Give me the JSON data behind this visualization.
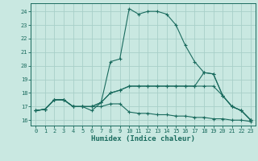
{
  "xlabel": "Humidex (Indice chaleur)",
  "ylabel": "",
  "bg_color": "#c9e8e1",
  "grid_color": "#a8cfc8",
  "line_color": "#1a6b5e",
  "xlim": [
    -0.5,
    23.5
  ],
  "ylim": [
    15.6,
    24.6
  ],
  "yticks": [
    16,
    17,
    18,
    19,
    20,
    21,
    22,
    23,
    24
  ],
  "xticks": [
    0,
    1,
    2,
    3,
    4,
    5,
    6,
    7,
    8,
    9,
    10,
    11,
    12,
    13,
    14,
    15,
    16,
    17,
    18,
    19,
    20,
    21,
    22,
    23
  ],
  "series": [
    [
      16.7,
      16.8,
      17.5,
      17.5,
      17.0,
      17.0,
      16.7,
      17.3,
      20.3,
      20.5,
      24.2,
      23.8,
      24.0,
      24.0,
      23.8,
      23.0,
      21.5,
      20.3,
      19.5,
      19.4,
      17.8,
      17.0,
      16.7,
      16.0
    ],
    [
      16.7,
      16.8,
      17.5,
      17.5,
      17.0,
      17.0,
      17.0,
      17.3,
      18.0,
      18.2,
      18.5,
      18.5,
      18.5,
      18.5,
      18.5,
      18.5,
      18.5,
      18.5,
      19.5,
      19.4,
      17.8,
      17.0,
      16.7,
      16.0
    ],
    [
      16.7,
      16.8,
      17.5,
      17.5,
      17.0,
      17.0,
      17.0,
      17.3,
      18.0,
      18.2,
      18.5,
      18.5,
      18.5,
      18.5,
      18.5,
      18.5,
      18.5,
      18.5,
      18.5,
      18.5,
      17.8,
      17.0,
      16.7,
      16.0
    ],
    [
      16.7,
      16.8,
      17.5,
      17.5,
      17.0,
      17.0,
      17.0,
      17.0,
      17.2,
      17.2,
      16.6,
      16.5,
      16.5,
      16.4,
      16.4,
      16.3,
      16.3,
      16.2,
      16.2,
      16.1,
      16.1,
      16.0,
      16.0,
      15.9
    ]
  ]
}
